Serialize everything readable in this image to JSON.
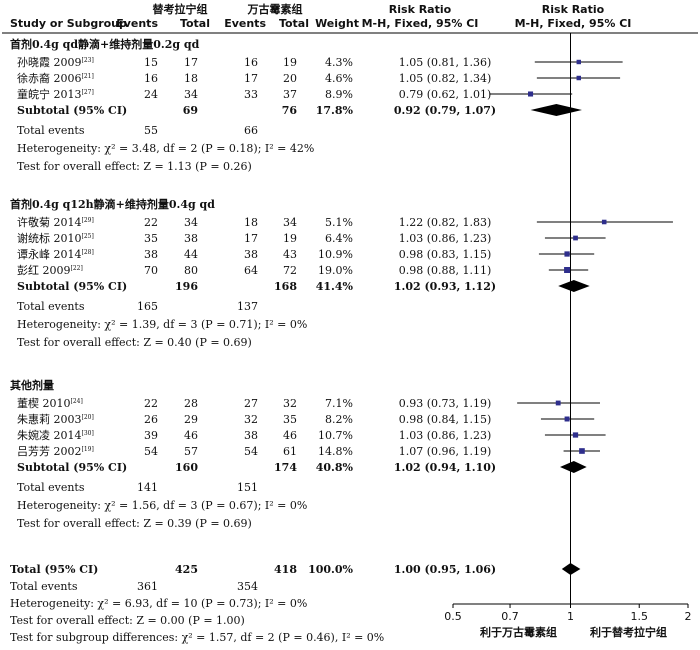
{
  "header": {
    "treatment_label": "替考拉宁组",
    "control_label": "万古霉素组",
    "study_col": "Study or Subgroup",
    "events_label": "Events",
    "total_label": "Total",
    "weight_label": "Weight",
    "rr_label": "Risk Ratio",
    "rr_method": "M-H, Fixed, 95% CI"
  },
  "chart_data": {
    "type": "forest",
    "scale": "log",
    "xlim": [
      0.5,
      2
    ],
    "xticks": [
      "0.5",
      "0.7",
      "1",
      "1.5",
      "2"
    ],
    "favours_left": "利于万古霉素组",
    "favours_right": "利于替考拉宁组",
    "subgroups": [
      {
        "title": "首剂0.4g qd静滴+维持剂量0.2g qd",
        "studies": [
          {
            "name": "孙晓霞 2009",
            "ref": "[23]",
            "e1": "15",
            "n1": "17",
            "e2": "16",
            "n2": "19",
            "weight": "4.3%",
            "ci": "1.05 (0.81, 1.36)",
            "rr": 1.05,
            "lo": 0.81,
            "hi": 1.36,
            "w": 4.3
          },
          {
            "name": "徐赤裔 2006",
            "ref": "[21]",
            "e1": "16",
            "n1": "18",
            "e2": "17",
            "n2": "20",
            "weight": "4.6%",
            "ci": "1.05 (0.82, 1.34)",
            "rr": 1.05,
            "lo": 0.82,
            "hi": 1.34,
            "w": 4.6
          },
          {
            "name": "童皖宁 2013",
            "ref": "[27]",
            "e1": "24",
            "n1": "34",
            "e2": "33",
            "n2": "37",
            "weight": "8.9%",
            "ci": "0.79 (0.62, 1.01)",
            "rr": 0.79,
            "lo": 0.62,
            "hi": 1.01,
            "w": 8.9
          }
        ],
        "subtotal": {
          "label": "Subtotal (95% CI)",
          "n1": "69",
          "n2": "76",
          "weight": "17.8%",
          "ci": "0.92 (0.79, 1.07)",
          "rr": 0.92,
          "lo": 0.79,
          "hi": 1.07
        },
        "total_events": {
          "label": "Total events",
          "e1": "55",
          "e2": "66"
        },
        "heterogeneity": "Heterogeneity: χ² = 3.48, df = 2 (P = 0.18); I² = 42%",
        "overall": "Test for overall effect: Z = 1.13 (P = 0.26)"
      },
      {
        "title": "首剂0.4g q12h静滴+维持剂量0.4g qd",
        "studies": [
          {
            "name": "许敬菊 2014",
            "ref": "[29]",
            "e1": "22",
            "n1": "34",
            "e2": "18",
            "n2": "34",
            "weight": "5.1%",
            "ci": "1.22 (0.82, 1.83)",
            "rr": 1.22,
            "lo": 0.82,
            "hi": 1.83,
            "w": 5.1
          },
          {
            "name": "谢统标 2010",
            "ref": "[25]",
            "e1": "35",
            "n1": "38",
            "e2": "17",
            "n2": "19",
            "weight": "6.4%",
            "ci": "1.03 (0.86, 1.23)",
            "rr": 1.03,
            "lo": 0.86,
            "hi": 1.23,
            "w": 6.4
          },
          {
            "name": "谭永峰 2014",
            "ref": "[28]",
            "e1": "38",
            "n1": "44",
            "e2": "38",
            "n2": "43",
            "weight": "10.9%",
            "ci": "0.98 (0.83, 1.15)",
            "rr": 0.98,
            "lo": 0.83,
            "hi": 1.15,
            "w": 10.9
          },
          {
            "name": "彭红 2009",
            "ref": "[22]",
            "e1": "70",
            "n1": "80",
            "e2": "64",
            "n2": "72",
            "weight": "19.0%",
            "ci": "0.98 (0.88, 1.11)",
            "rr": 0.98,
            "lo": 0.88,
            "hi": 1.11,
            "w": 19.0
          }
        ],
        "subtotal": {
          "label": "Subtotal (95% CI)",
          "n1": "196",
          "n2": "168",
          "weight": "41.4%",
          "ci": "1.02 (0.93, 1.12)",
          "rr": 1.02,
          "lo": 0.93,
          "hi": 1.12
        },
        "total_events": {
          "label": "Total events",
          "e1": "165",
          "e2": "137"
        },
        "heterogeneity": "Heterogeneity: χ² = 1.39, df = 3 (P = 0.71); I² = 0%",
        "overall": "Test for overall effect: Z = 0.40 (P = 0.69)"
      },
      {
        "title": "其他剂量",
        "studies": [
          {
            "name": "董楔 2010",
            "ref": "[24]",
            "e1": "22",
            "n1": "28",
            "e2": "27",
            "n2": "32",
            "weight": "7.1%",
            "ci": "0.93 (0.73, 1.19)",
            "rr": 0.93,
            "lo": 0.73,
            "hi": 1.19,
            "w": 7.1
          },
          {
            "name": "朱惠莉 2003",
            "ref": "[20]",
            "e1": "26",
            "n1": "29",
            "e2": "32",
            "n2": "35",
            "weight": "8.2%",
            "ci": "0.98 (0.84, 1.15)",
            "rr": 0.98,
            "lo": 0.84,
            "hi": 1.15,
            "w": 8.2
          },
          {
            "name": "朱婉凌 2014",
            "ref": "[30]",
            "e1": "39",
            "n1": "46",
            "e2": "38",
            "n2": "46",
            "weight": "10.7%",
            "ci": "1.03 (0.86, 1.23)",
            "rr": 1.03,
            "lo": 0.86,
            "hi": 1.23,
            "w": 10.7
          },
          {
            "name": "吕芳芳 2002",
            "ref": "[19]",
            "e1": "54",
            "n1": "57",
            "e2": "54",
            "n2": "61",
            "weight": "14.8%",
            "ci": "1.07 (0.96, 1.19)",
            "rr": 1.07,
            "lo": 0.96,
            "hi": 1.19,
            "w": 14.8
          }
        ],
        "subtotal": {
          "label": "Subtotal (95% CI)",
          "n1": "160",
          "n2": "174",
          "weight": "40.8%",
          "ci": "1.02 (0.94, 1.10)",
          "rr": 1.02,
          "lo": 0.94,
          "hi": 1.1
        },
        "total_events": {
          "label": "Total events",
          "e1": "141",
          "e2": "151"
        },
        "heterogeneity": "Heterogeneity: χ² = 1.56, df = 3 (P = 0.67); I² = 0%",
        "overall": "Test for overall effect: Z = 0.39 (P = 0.69)"
      }
    ],
    "total": {
      "label": "Total (95% CI)",
      "n1": "425",
      "n2": "418",
      "weight": "100.0%",
      "ci": "1.00 (0.95, 1.06)",
      "rr": 1.0,
      "lo": 0.95,
      "hi": 1.06
    },
    "total_events": {
      "label": "Total events",
      "e1": "361",
      "e2": "354"
    },
    "heterogeneity": "Heterogeneity: χ² = 6.93, df = 10 (P = 0.73); I² = 0%",
    "overall": "Test for overall effect: Z = 0.00 (P = 1.00)",
    "subgroup_diff": "Test for subgroup differences: χ² = 1.57, df = 2 (P = 0.46), I² = 0%",
    "colors": {
      "study_marker": "#2e2e8c",
      "diamond": "#000000",
      "line": "#000000"
    }
  }
}
